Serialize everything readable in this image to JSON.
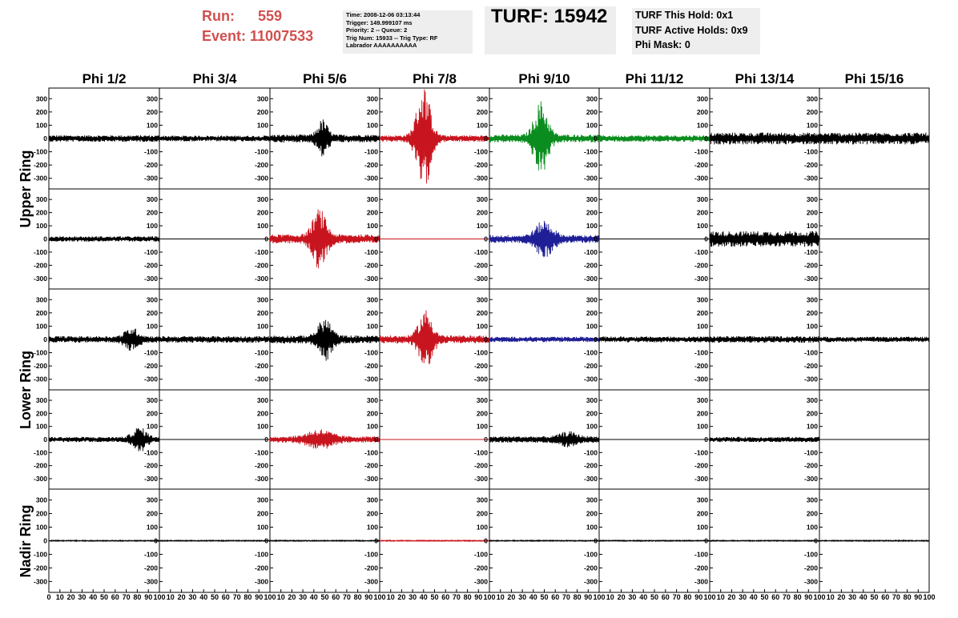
{
  "header": {
    "run_label": "Run:",
    "run_value": "559",
    "event_label": "Event:",
    "event_value": "11007533",
    "info_lines": [
      "Time: 2008-12-06 03:13:44",
      "Trigger: 149.999107 ms",
      "Priority: 2 -- Queue: 2",
      "Trig Num: 15933 -- Trig Type: RF",
      "Labrador AAAAAAAAAA"
    ],
    "turf": "TURF: 15942",
    "hold_lines": [
      "TURF This Hold: 0x1",
      "TURF Active Holds: 0x9",
      "Phi Mask: 0"
    ]
  },
  "colors": {
    "run_text": "#d0504e",
    "black": "#000000",
    "red": "#c8141e",
    "green": "#0a8c1e",
    "blue": "#1e1e96",
    "box_bg": "#eeeeee"
  },
  "chart_data": {
    "type": "line",
    "columns": [
      "Phi 1/2",
      "Phi 3/4",
      "Phi 5/6",
      "Phi 7/8",
      "Phi 9/10",
      "Phi 11/12",
      "Phi 13/14",
      "Phi 15/16"
    ],
    "rows": [
      "Upper Ring",
      "Upper Ring",
      "Lower Ring",
      "Lower Ring",
      "Nadir Ring"
    ],
    "ring_labels": [
      "Upper Ring",
      "Lower Ring",
      "Nadir Ring"
    ],
    "ylim": [
      -380,
      380
    ],
    "yticks": [
      -300,
      -200,
      -100,
      0,
      100,
      200,
      300
    ],
    "xlim": [
      0,
      100
    ],
    "xticks": [
      0,
      10,
      20,
      30,
      40,
      50,
      60,
      70,
      80,
      90,
      100
    ],
    "xtick_labels": [
      "0",
      "10",
      "20",
      "30",
      "40",
      "50",
      "60",
      "70",
      "80",
      "90",
      "100"
    ],
    "panels": [
      [
        {
          "color": "black",
          "noise": 25,
          "burst": null
        },
        {
          "color": "black",
          "noise": 22,
          "burst": null
        },
        {
          "color": "black",
          "noise": 30,
          "burst": {
            "center": 48,
            "amp": 120,
            "width": 6
          }
        },
        {
          "color": "red",
          "noise": 25,
          "burst": {
            "center": 40,
            "amp": 380,
            "width": 8
          }
        },
        {
          "color": "green",
          "noise": 30,
          "burst": {
            "center": 47,
            "amp": 260,
            "width": 8
          }
        },
        {
          "color": "green",
          "noise": 25,
          "burst": null
        },
        {
          "color": "black",
          "noise": 45,
          "burst": null
        },
        {
          "color": "black",
          "noise": 45,
          "burst": null
        }
      ],
      [
        {
          "color": "black",
          "noise": 20,
          "burst": null
        },
        {
          "color": "black",
          "noise": 0,
          "burst": null
        },
        {
          "color": "red",
          "noise": 35,
          "burst": {
            "center": 45,
            "amp": 200,
            "width": 8
          }
        },
        {
          "color": "red",
          "noise": 0,
          "burst": null
        },
        {
          "color": "blue",
          "noise": 30,
          "burst": {
            "center": 50,
            "amp": 120,
            "width": 10
          }
        },
        {
          "color": "black",
          "noise": 0,
          "burst": null
        },
        {
          "color": "black",
          "noise": 60,
          "burst": null
        },
        {
          "color": "black",
          "noise": 0,
          "burst": null
        }
      ],
      [
        {
          "color": "black",
          "noise": 25,
          "burst": {
            "center": 75,
            "amp": 70,
            "width": 8
          }
        },
        {
          "color": "black",
          "noise": 25,
          "burst": null
        },
        {
          "color": "black",
          "noise": 30,
          "burst": {
            "center": 50,
            "amp": 140,
            "width": 8
          }
        },
        {
          "color": "red",
          "noise": 30,
          "burst": {
            "center": 42,
            "amp": 200,
            "width": 8
          }
        },
        {
          "color": "blue",
          "noise": 20,
          "burst": null
        },
        {
          "color": "black",
          "noise": 22,
          "burst": null
        },
        {
          "color": "black",
          "noise": 25,
          "burst": null
        },
        {
          "color": "black",
          "noise": 20,
          "burst": null
        }
      ],
      [
        {
          "color": "black",
          "noise": 20,
          "burst": {
            "center": 82,
            "amp": 80,
            "width": 8
          }
        },
        {
          "color": "black",
          "noise": 0,
          "burst": null
        },
        {
          "color": "red",
          "noise": 25,
          "burst": {
            "center": 45,
            "amp": 60,
            "width": 14
          }
        },
        {
          "color": "red",
          "noise": 0,
          "burst": null
        },
        {
          "color": "black",
          "noise": 25,
          "burst": {
            "center": 72,
            "amp": 40,
            "width": 10
          }
        },
        {
          "color": "black",
          "noise": 0,
          "burst": null
        },
        {
          "color": "black",
          "noise": 20,
          "burst": null
        },
        {
          "color": "black",
          "noise": 0,
          "burst": null
        }
      ],
      [
        {
          "color": "black",
          "noise": 4,
          "burst": null
        },
        {
          "color": "black",
          "noise": 4,
          "burst": null
        },
        {
          "color": "black",
          "noise": 4,
          "burst": null
        },
        {
          "color": "red",
          "noise": 4,
          "burst": null
        },
        {
          "color": "black",
          "noise": 4,
          "burst": null
        },
        {
          "color": "black",
          "noise": 4,
          "burst": null
        },
        {
          "color": "black",
          "noise": 4,
          "burst": null
        },
        {
          "color": "black",
          "noise": 4,
          "burst": null
        }
      ]
    ]
  }
}
